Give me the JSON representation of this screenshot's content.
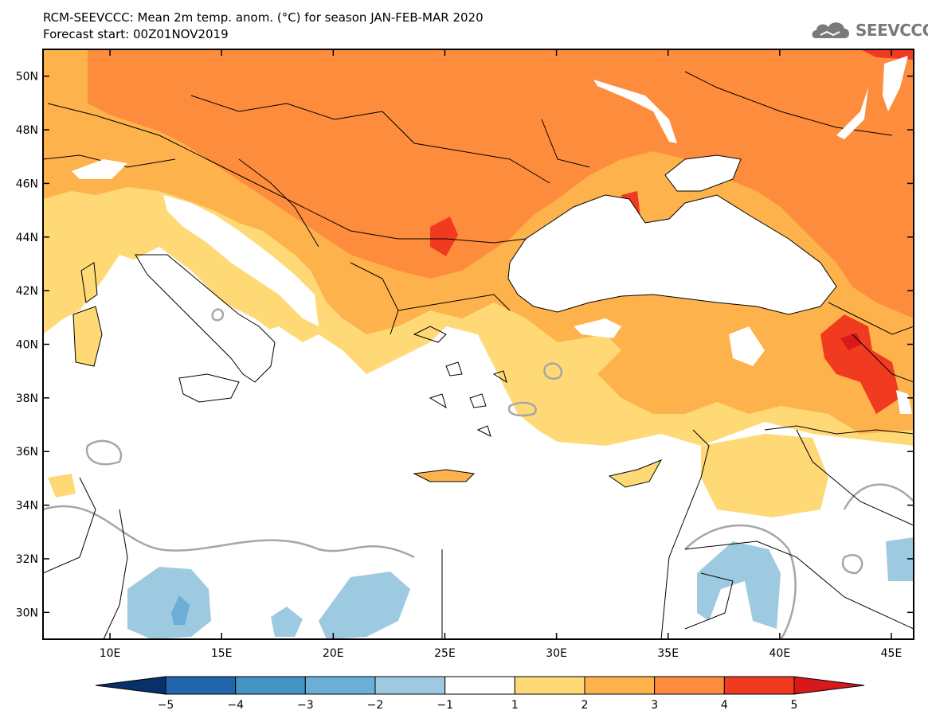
{
  "header": {
    "title_line1": "RCM-SEEVCCC: Mean 2m temp. anom. (°C) for season JAN-FEB-MAR 2020",
    "title_line2": "Forecast start: 00Z01NOV2019"
  },
  "logo": {
    "icon": "cloud-logo-icon",
    "text": "SEEVCCC"
  },
  "map": {
    "lat_labels": [
      "50N",
      "48N",
      "46N",
      "44N",
      "42N",
      "40N",
      "38N",
      "36N",
      "34N",
      "32N",
      "30N"
    ],
    "lat_values": [
      50,
      48,
      46,
      44,
      42,
      40,
      38,
      36,
      34,
      32,
      30
    ],
    "lon_labels": [
      "10E",
      "15E",
      "20E",
      "25E",
      "30E",
      "35E",
      "40E",
      "45E"
    ],
    "lon_values": [
      10,
      15,
      20,
      25,
      30,
      35,
      40,
      45
    ],
    "lon_range": [
      7,
      46
    ],
    "lat_range": [
      29,
      51
    ]
  },
  "colorbar": {
    "ticks": [
      "−5",
      "−4",
      "−3",
      "−2",
      "−1",
      "1",
      "2",
      "3",
      "4",
      "5"
    ],
    "colors": [
      "#08306b",
      "#2166ac",
      "#4393c3",
      "#6baed6",
      "#9ecae1",
      "#ffffff",
      "#fed976",
      "#feb24c",
      "#fd8d3c",
      "#f03b20",
      "#d7191c"
    ]
  }
}
